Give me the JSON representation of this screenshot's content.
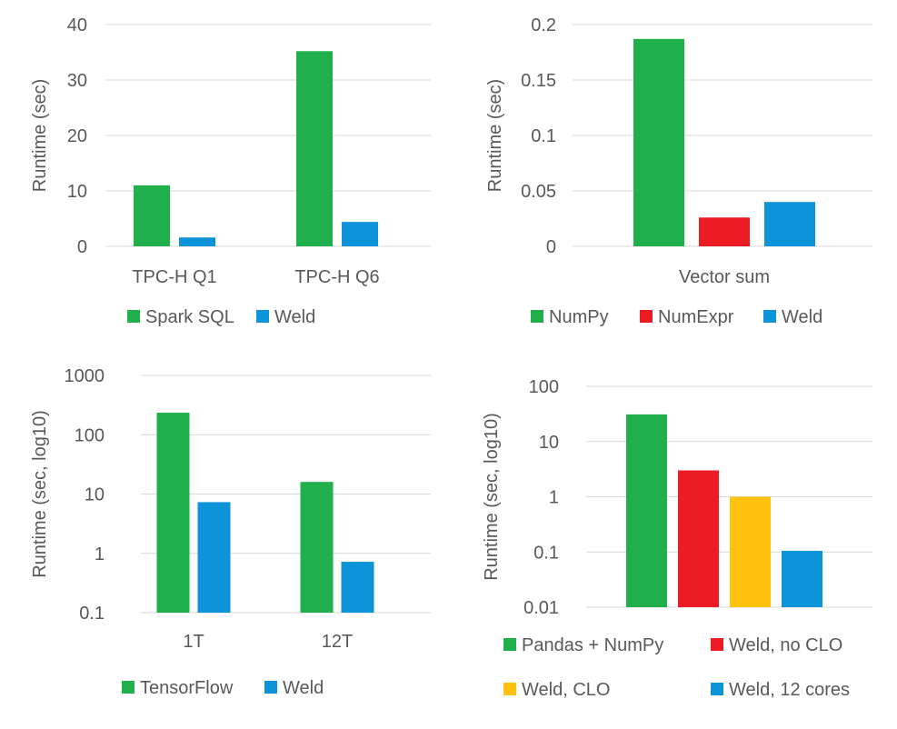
{
  "colors": {
    "green": "#1fb04b",
    "blue": "#0d93d8",
    "red": "#ec1c24",
    "yellow": "#ffc20e"
  },
  "chart_data": [
    {
      "type": "bar",
      "ylabel": "Runtime (sec)",
      "categories": [
        "TPC-H Q1",
        "TPC-H Q6"
      ],
      "yticks": [
        "0",
        "10",
        "20",
        "30",
        "40"
      ],
      "ylim": [
        0,
        40
      ],
      "log": false,
      "legend_position": "bottom",
      "series": [
        {
          "name": "Spark SQL",
          "color": "#1fb04b",
          "values": [
            11.0,
            35.2
          ]
        },
        {
          "name": "Weld",
          "color": "#0d93d8",
          "values": [
            1.6,
            4.4
          ]
        }
      ]
    },
    {
      "type": "bar",
      "ylabel": "Runtime (sec)",
      "categories": [
        "Vector sum"
      ],
      "yticks": [
        "0",
        "0.05",
        "0.1",
        "0.15",
        "0.2"
      ],
      "ylim": [
        0,
        0.2
      ],
      "log": false,
      "legend_position": "bottom",
      "series": [
        {
          "name": "NumPy",
          "color": "#1fb04b",
          "values": [
            0.187
          ]
        },
        {
          "name": "NumExpr",
          "color": "#ec1c24",
          "values": [
            0.026
          ]
        },
        {
          "name": "Weld",
          "color": "#0d93d8",
          "values": [
            0.04
          ]
        }
      ]
    },
    {
      "type": "bar",
      "ylabel": "Runtime (sec, log10)",
      "categories": [
        "1T",
        "12T"
      ],
      "yticks": [
        "0.1",
        "1",
        "10",
        "100",
        "1000"
      ],
      "ylim": [
        0.1,
        1000
      ],
      "log": true,
      "legend_position": "bottom",
      "series": [
        {
          "name": "TensorFlow",
          "color": "#1fb04b",
          "values": [
            235,
            16
          ]
        },
        {
          "name": "Weld",
          "color": "#0d93d8",
          "values": [
            7.3,
            0.72
          ]
        }
      ]
    },
    {
      "type": "bar",
      "ylabel": "Runtime (sec, log10)",
      "categories": [
        ""
      ],
      "yticks": [
        "0.01",
        "0.1",
        "1",
        "10",
        "100"
      ],
      "ylim": [
        0.01,
        100
      ],
      "log": true,
      "legend_position": "bottom",
      "series": [
        {
          "name": "Pandas + NumPy",
          "color": "#1fb04b",
          "values": [
            31
          ]
        },
        {
          "name": "Weld, no CLO",
          "color": "#ec1c24",
          "values": [
            3.0
          ]
        },
        {
          "name": "Weld, CLO",
          "color": "#ffc20e",
          "values": [
            1.0
          ]
        },
        {
          "name": "Weld, 12 cores",
          "color": "#0d93d8",
          "values": [
            0.105
          ]
        }
      ]
    }
  ]
}
